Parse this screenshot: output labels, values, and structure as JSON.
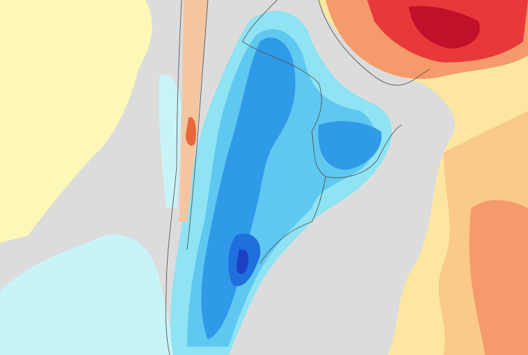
{
  "map": {
    "type": "temperature-anomaly",
    "colors": {
      "background": "#dcdcdc",
      "pale_yellow": "#fdf7b8",
      "light_cyan": "#c8f4f8",
      "cyan": "#8fe3f2",
      "light_blue": "#5ec8f0",
      "blue": "#2f9ae8",
      "mid_blue": "#1f6fdc",
      "dark_blue": "#1d3fc4",
      "yellow": "#fde7a0",
      "light_orange": "#fbc98a",
      "orange": "#f59a6a",
      "red": "#e8383a",
      "dark_red": "#c0102a",
      "borders": "#555555"
    }
  }
}
